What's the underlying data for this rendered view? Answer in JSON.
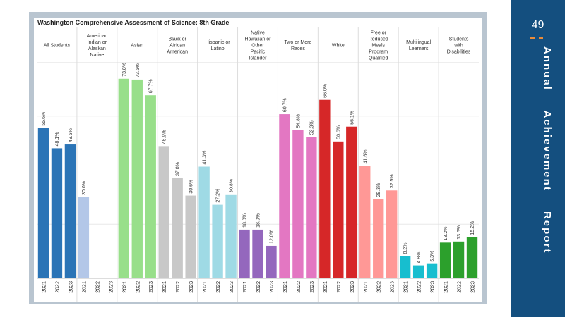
{
  "page": {
    "number": "49",
    "side_title": "Annual Achievement Report",
    "colors": {
      "sidebar": "#144f7f",
      "dash": "#e98b3a",
      "frame": "#b9c5d0"
    }
  },
  "chart_data": {
    "type": "bar",
    "title": "Washington Comprehensive Assessment of Science: 8th Grade",
    "ylim": [
      0,
      80
    ],
    "grid": true,
    "years": [
      "2021",
      "2022",
      "2023"
    ],
    "groups": [
      {
        "name": "All Students",
        "color": "#2b74b6",
        "values": [
          55.6,
          48.1,
          49.5
        ],
        "labels": [
          "55.6%",
          "48.1%",
          "49.5%"
        ]
      },
      {
        "name": "American Indian or Alaskan Native",
        "color": "#b3c7e8",
        "values": [
          30.0,
          null,
          null
        ],
        "labels": [
          "30.0%",
          "",
          ""
        ]
      },
      {
        "name": "Asian",
        "color": "#98df8a",
        "values": [
          73.8,
          73.5,
          67.7
        ],
        "labels": [
          "73.8%",
          "73.5%",
          "67.7%"
        ]
      },
      {
        "name": "Black or African American",
        "color": "#c8c8c8",
        "values": [
          48.9,
          37.0,
          30.6
        ],
        "labels": [
          "48.9%",
          "37.0%",
          "30.6%"
        ]
      },
      {
        "name": "Hispanic or Latino",
        "color": "#9fdae5",
        "values": [
          41.3,
          27.2,
          30.8
        ],
        "labels": [
          "41.3%",
          "27.2%",
          "30.8%"
        ]
      },
      {
        "name": "Native Hawaiian or Other Pacific Islander",
        "color": "#9467bd",
        "values": [
          18.0,
          18.0,
          12.0
        ],
        "labels": [
          "18.0%",
          "18.0%",
          "12.0%"
        ]
      },
      {
        "name": "Two or More Races",
        "color": "#e377c2",
        "values": [
          60.7,
          54.8,
          52.3
        ],
        "labels": [
          "60.7%",
          "54.8%",
          "52.3%"
        ]
      },
      {
        "name": "White",
        "color": "#d62728",
        "values": [
          66.0,
          50.6,
          56.1
        ],
        "labels": [
          "66.0%",
          "50.6%",
          "56.1%"
        ]
      },
      {
        "name": "Free or Reduced Meals Program Qualified",
        "color": "#ff9896",
        "values": [
          41.6,
          29.3,
          32.5
        ],
        "labels": [
          "41.6%",
          "29.3%",
          "32.5%"
        ]
      },
      {
        "name": "Multilingual Learners",
        "color": "#17becf",
        "values": [
          8.2,
          4.8,
          5.3
        ],
        "labels": [
          "8.2%",
          "4.8%",
          "5.3%"
        ]
      },
      {
        "name": "Students with Disabilities",
        "color": "#2ca02c",
        "values": [
          13.2,
          13.6,
          15.2
        ],
        "labels": [
          "13.2%",
          "13.6%",
          "15.2%"
        ]
      }
    ]
  }
}
